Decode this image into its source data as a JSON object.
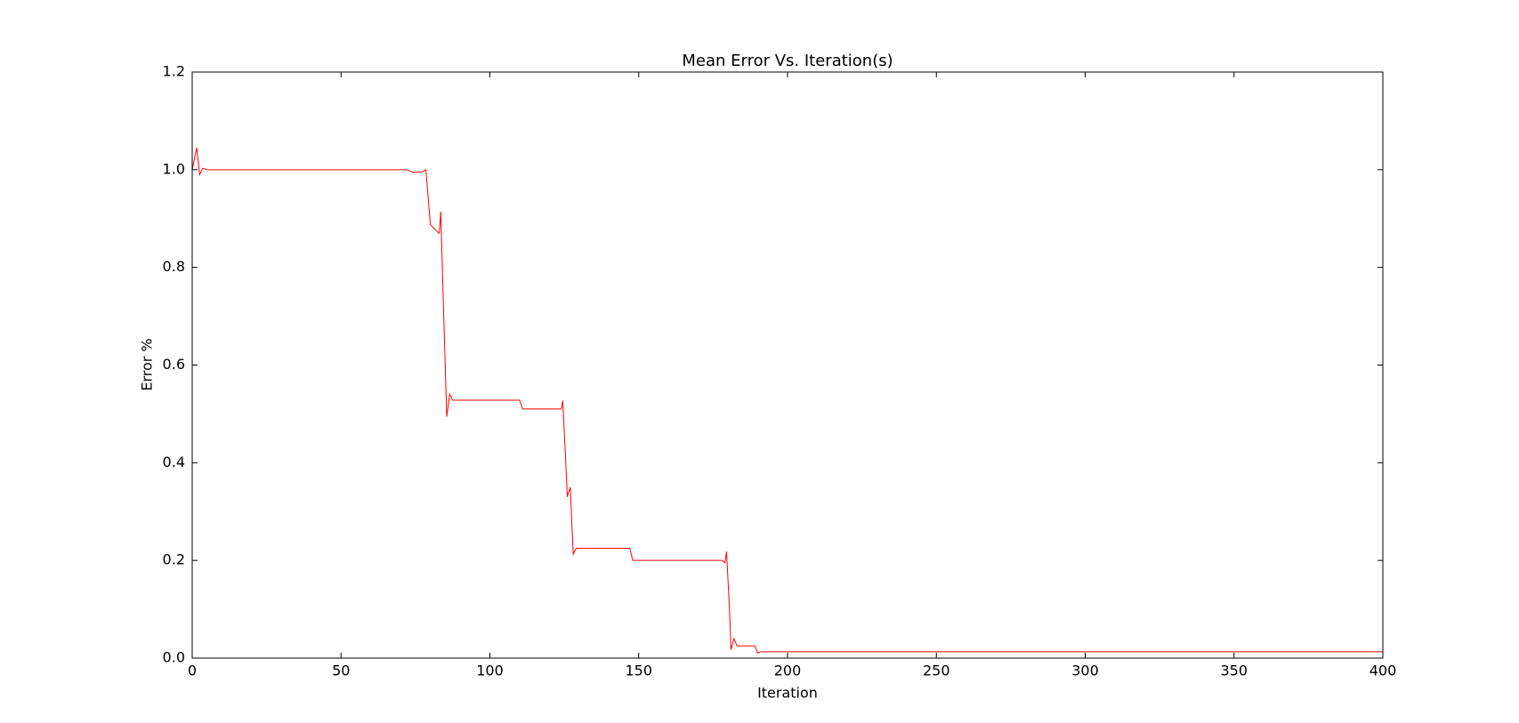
{
  "chart_data": {
    "type": "line",
    "title": "Mean Error Vs. Iteration(s)",
    "x_label": "Iteration",
    "y_label": "Error %",
    "x": [
      0,
      1.5,
      2.5,
      3.5,
      5,
      72,
      74,
      77,
      78.5,
      80,
      82,
      83,
      83.5,
      84.5,
      85.5,
      86.5,
      87.5,
      110,
      111,
      124,
      124.5,
      125.5,
      126,
      127,
      128,
      129,
      147,
      148,
      178,
      179,
      179.5,
      180.5,
      181,
      182,
      183,
      189,
      190,
      191,
      400
    ],
    "values": [
      1.0,
      1.045,
      0.99,
      1.003,
      1.0,
      1.0,
      0.995,
      0.995,
      1.0,
      0.888,
      0.875,
      0.87,
      0.914,
      0.7,
      0.494,
      0.54,
      0.528,
      0.528,
      0.51,
      0.51,
      0.527,
      0.4,
      0.33,
      0.35,
      0.213,
      0.225,
      0.225,
      0.2,
      0.2,
      0.195,
      0.218,
      0.1,
      0.017,
      0.04,
      0.025,
      0.025,
      0.01,
      0.013,
      0.013
    ],
    "color": "#ff0000",
    "xlim": [
      0,
      400
    ],
    "xticks": [
      0,
      50,
      100,
      150,
      200,
      250,
      300,
      350,
      400
    ],
    "ylim": [
      0,
      1.2
    ],
    "yticks": [
      {
        "value": 0,
        "label": "0.0"
      },
      {
        "value": 0.2,
        "label": "0.2"
      },
      {
        "value": 0.4,
        "label": "0.4"
      },
      {
        "value": 0.6,
        "label": "0.6"
      },
      {
        "value": 0.8,
        "label": "0.8"
      },
      {
        "value": 1,
        "label": "1.0"
      },
      {
        "value": 1.2,
        "label": "1.2"
      }
    ],
    "grid": false
  }
}
